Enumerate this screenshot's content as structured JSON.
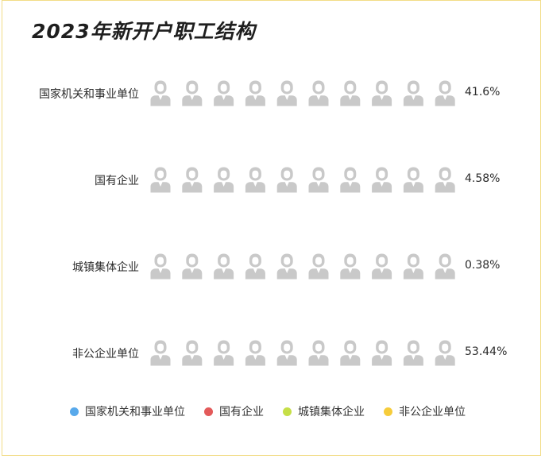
{
  "title": "2023年新开户职工结构",
  "colors": {
    "empty": "#c9c9c9",
    "border": "#f2dc86"
  },
  "chart_data": {
    "type": "pictogram",
    "title": "2023年新开户职工结构",
    "icons_per_row": 10,
    "series": [
      {
        "name": "国家机关和事业单位",
        "value": 41.6,
        "label": "41.6%",
        "color": "#58a9eb"
      },
      {
        "name": "国有企业",
        "value": 4.58,
        "label": "4.58%",
        "color": "#e35a5a"
      },
      {
        "name": "城镇集体企业",
        "value": 0.38,
        "label": "0.38%",
        "color": "#c6df47"
      },
      {
        "name": "非公企业单位",
        "value": 53.44,
        "label": "53.44%",
        "color": "#f6cc3b"
      }
    ]
  },
  "legend": [
    {
      "label": "国家机关和事业单位",
      "color": "#58a9eb"
    },
    {
      "label": "国有企业",
      "color": "#e35a5a"
    },
    {
      "label": "城镇集体企业",
      "color": "#c6df47"
    },
    {
      "label": "非公企业单位",
      "color": "#f6cc3b"
    }
  ]
}
